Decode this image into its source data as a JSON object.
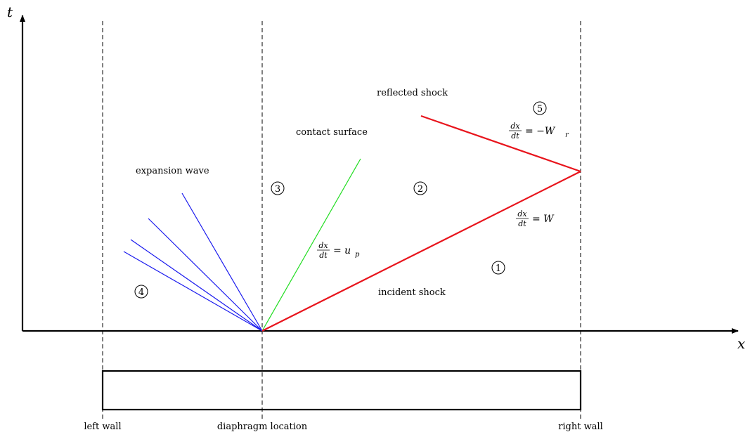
{
  "axes": {
    "x_label": "x",
    "t_label": "t"
  },
  "walls": {
    "left": "left wall",
    "diaphragm": "diaphragm location",
    "right": "right wall"
  },
  "labels": {
    "expansion_wave": "expansion wave",
    "contact_surface": "contact surface",
    "reflected_shock": "reflected shock",
    "incident_shock": "incident shock"
  },
  "regions": {
    "r1": "1",
    "r2": "2",
    "r3": "3",
    "r4": "4",
    "r5": "5"
  },
  "equations": {
    "frac_num": "dx",
    "frac_den": "dt",
    "contact_rhs": "= u",
    "contact_sub": "p",
    "incident_rhs": "= W",
    "reflected_rhs": "= −W",
    "reflected_sub": "r"
  },
  "colors": {
    "shock": "#e8141c",
    "contact": "#22dd22",
    "expansion": "#1a1aee",
    "axes": "#000000"
  }
}
